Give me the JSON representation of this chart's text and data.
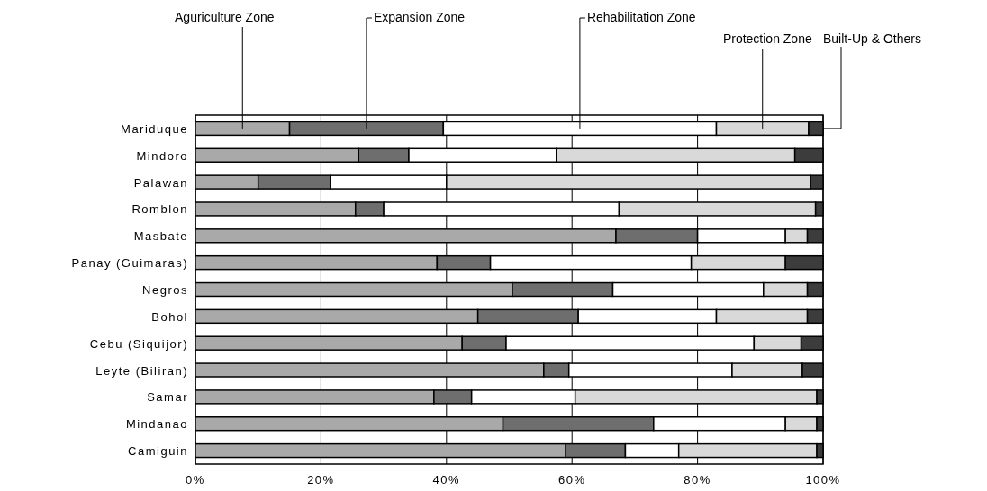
{
  "chart_data": {
    "type": "bar",
    "orientation": "horizontal",
    "stacked": true,
    "categories": [
      "Mariduque",
      "Mindoro",
      "Palawan",
      "Romblon",
      "Masbate",
      "Panay (Guimaras)",
      "Negros",
      "Bohol",
      "Cebu (Siquijor)",
      "Leyte (Biliran)",
      "Samar",
      "Mindanao",
      "Camiguin"
    ],
    "series": [
      {
        "name": "Aguriculture Zone",
        "color": "#a9a9a9",
        "values": [
          15,
          26,
          10,
          25.5,
          67,
          38.5,
          50.5,
          45,
          42.5,
          55.5,
          38,
          49,
          59
        ]
      },
      {
        "name": "Expansion Zone",
        "color": "#6e6e6e",
        "values": [
          24.5,
          8,
          11.5,
          4.5,
          13,
          8.5,
          16,
          16,
          7,
          4,
          6,
          24,
          9.5
        ]
      },
      {
        "name": "Rehabilitation Zone",
        "color": "#ffffff",
        "values": [
          43.5,
          23.5,
          18.5,
          37.5,
          14,
          32,
          24,
          22,
          39.5,
          26,
          16.5,
          21,
          8.5
        ]
      },
      {
        "name": "Protection Zone",
        "color": "#d9d9d9",
        "values": [
          14.7,
          38,
          58,
          31.3,
          3.5,
          15,
          7,
          14.5,
          7.5,
          11.2,
          38.5,
          5,
          22
        ]
      },
      {
        "name": "Built-Up & Others",
        "color": "#3c3c3c",
        "values": [
          2.3,
          4.5,
          2,
          1.2,
          2.5,
          6,
          2.5,
          2.5,
          3.5,
          3.3,
          1,
          1,
          1
        ]
      }
    ],
    "xlim": [
      0,
      100
    ],
    "xticks": [
      {
        "value": 0,
        "label": "0%"
      },
      {
        "value": 20,
        "label": "20%"
      },
      {
        "value": 40,
        "label": "40%"
      },
      {
        "value": 60,
        "label": "60%"
      },
      {
        "value": 80,
        "label": "80%"
      },
      {
        "value": 100,
        "label": "100%"
      }
    ],
    "grid": "x",
    "legend": "top"
  }
}
